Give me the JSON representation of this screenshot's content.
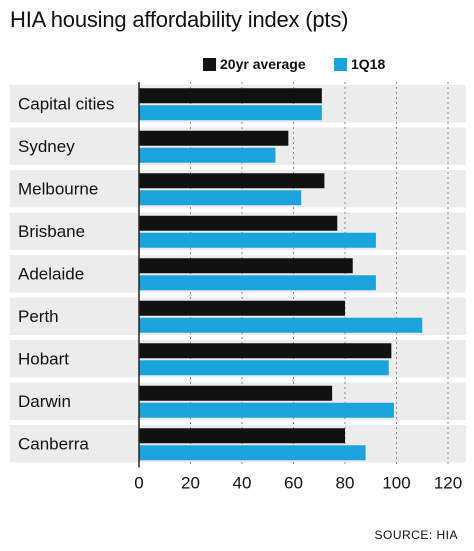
{
  "title": "HIA housing affordability index (pts)",
  "source": "SOURCE: HIA",
  "colors": {
    "series_20yr": "#111111",
    "series_1q18": "#1aa3dd",
    "row_band": "#ececec",
    "grid": "#888888"
  },
  "chart_data": {
    "type": "bar",
    "orientation": "horizontal",
    "title": "HIA housing affordability index (pts)",
    "categories": [
      "Capital cities",
      "Sydney",
      "Melbourne",
      "Brisbane",
      "Adelaide",
      "Perth",
      "Hobart",
      "Darwin",
      "Canberra"
    ],
    "series": [
      {
        "name": "20yr average",
        "values": [
          71,
          58,
          72,
          77,
          83,
          80,
          98,
          75,
          80
        ]
      },
      {
        "name": "1Q18",
        "values": [
          71,
          53,
          63,
          92,
          92,
          110,
          97,
          99,
          88
        ]
      }
    ],
    "xlim": [
      0,
      120
    ],
    "xticks": [
      "0",
      "20",
      "40",
      "60",
      "80",
      "100",
      "120"
    ],
    "grid": true,
    "legend": "top"
  }
}
